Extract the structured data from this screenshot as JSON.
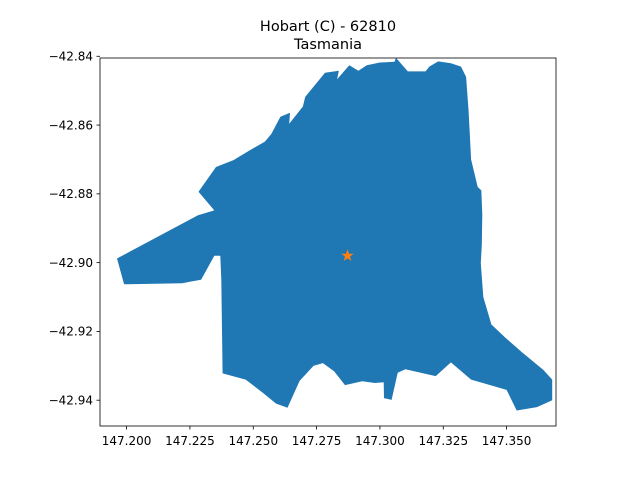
{
  "chart_data": {
    "type": "map",
    "title": "Hobart (C) - 62810",
    "subtitle": "Tasmania",
    "xlabel": "",
    "ylabel": "",
    "xlim": [
      147.1895,
      147.3695
    ],
    "ylim": [
      -42.9475,
      -42.8405
    ],
    "x_ticks": [
      "147.200",
      "147.225",
      "147.250",
      "147.275",
      "147.300",
      "147.325",
      "147.350"
    ],
    "x_tick_values": [
      147.2,
      147.225,
      147.25,
      147.275,
      147.3,
      147.325,
      147.35
    ],
    "y_ticks": [
      "−42.84",
      "−42.86",
      "−42.88",
      "−42.90",
      "−42.92",
      "−42.94"
    ],
    "y_tick_values": [
      -42.84,
      -42.86,
      -42.88,
      -42.9,
      -42.92,
      -42.94
    ],
    "grid": false,
    "region_color": "#1f77b4",
    "marker": {
      "shape": "star",
      "color": "#ff7f0e",
      "lon": 147.2872,
      "lat": -42.898
    },
    "boundary": [
      [
        147.1962,
        -42.8988
      ],
      [
        147.2282,
        -42.8862
      ],
      [
        147.2346,
        -42.8848
      ],
      [
        147.2284,
        -42.8794
      ],
      [
        147.2353,
        -42.8722
      ],
      [
        147.2422,
        -42.8702
      ],
      [
        147.248,
        -42.8676
      ],
      [
        147.2546,
        -42.8648
      ],
      [
        147.2571,
        -42.8626
      ],
      [
        147.2607,
        -42.8576
      ],
      [
        147.2645,
        -42.8564
      ],
      [
        147.2642,
        -42.8596
      ],
      [
        147.2696,
        -42.8546
      ],
      [
        147.2705,
        -42.8518
      ],
      [
        147.2783,
        -42.8448
      ],
      [
        147.2838,
        -42.8442
      ],
      [
        147.2831,
        -42.8467
      ],
      [
        147.2879,
        -42.8426
      ],
      [
        147.2915,
        -42.8442
      ],
      [
        147.2948,
        -42.8426
      ],
      [
        147.3,
        -42.8418
      ],
      [
        147.3058,
        -42.8416
      ],
      [
        147.3063,
        -42.8404
      ],
      [
        147.311,
        -42.8444
      ],
      [
        147.318,
        -42.8444
      ],
      [
        147.3195,
        -42.843
      ],
      [
        147.323,
        -42.8415
      ],
      [
        147.328,
        -42.842
      ],
      [
        147.332,
        -42.843
      ],
      [
        147.334,
        -42.846
      ],
      [
        147.335,
        -42.856
      ],
      [
        147.336,
        -42.87
      ],
      [
        147.3386,
        -42.878
      ],
      [
        147.34,
        -42.879
      ],
      [
        147.3404,
        -42.886
      ],
      [
        147.3402,
        -42.8948
      ],
      [
        147.3398,
        -42.9002
      ],
      [
        147.3408,
        -42.91
      ],
      [
        147.344,
        -42.918
      ],
      [
        147.3495,
        -42.9218
      ],
      [
        147.356,
        -42.926
      ],
      [
        147.3645,
        -42.9312
      ],
      [
        147.368,
        -42.934
      ],
      [
        147.368,
        -42.94
      ],
      [
        147.362,
        -42.942
      ],
      [
        147.354,
        -42.943
      ],
      [
        147.35,
        -42.937
      ],
      [
        147.336,
        -42.934
      ],
      [
        147.328,
        -42.929
      ],
      [
        147.322,
        -42.933
      ],
      [
        147.31,
        -42.931
      ],
      [
        147.307,
        -42.932
      ],
      [
        147.3046,
        -42.9399
      ],
      [
        147.3016,
        -42.9394
      ],
      [
        147.3015,
        -42.9348
      ],
      [
        147.298,
        -42.935
      ],
      [
        147.293,
        -42.9345
      ],
      [
        147.2862,
        -42.9356
      ],
      [
        147.2819,
        -42.9316
      ],
      [
        147.2775,
        -42.9292
      ],
      [
        147.2738,
        -42.93
      ],
      [
        147.2683,
        -42.9344
      ],
      [
        147.2635,
        -42.9422
      ],
      [
        147.259,
        -42.941
      ],
      [
        147.254,
        -42.938
      ],
      [
        147.247,
        -42.934
      ],
      [
        147.2379,
        -42.9322
      ],
      [
        147.2374,
        -42.905
      ],
      [
        147.237,
        -42.898
      ],
      [
        147.2346,
        -42.898
      ],
      [
        147.2294,
        -42.905
      ],
      [
        147.2252,
        -42.9055
      ],
      [
        147.222,
        -42.906
      ],
      [
        147.199,
        -42.9063
      ],
      [
        147.1962,
        -42.8988
      ]
    ]
  }
}
